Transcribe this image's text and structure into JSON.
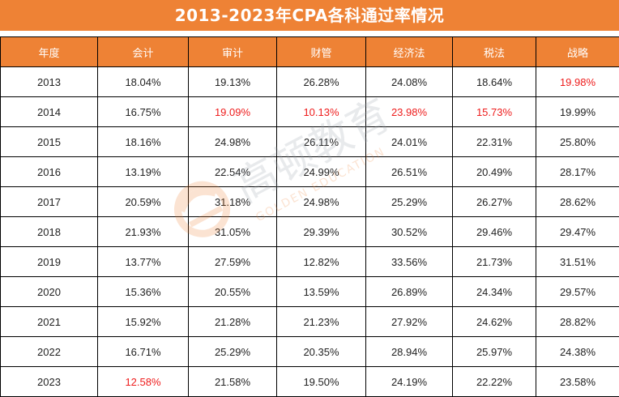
{
  "title": "2013-2023年CPA各科通过率情况",
  "colors": {
    "header_bg": "#ee8235",
    "header_text": "#ffffff",
    "highlight_red": "#ee1c1c",
    "cell_text": "#222222",
    "border": "#000000"
  },
  "watermark": {
    "text": "高顿教育",
    "subtext": "GOLDEN EDUCATION",
    "icon": "golden-education-logo-icon"
  },
  "table": {
    "headers": [
      "年度",
      "会计",
      "审计",
      "财管",
      "经济法",
      "税法",
      "战略"
    ],
    "rows": [
      {
        "cells": [
          "2013",
          "18.04%",
          "19.13%",
          "26.28%",
          "24.08%",
          "18.64%",
          "19.98%"
        ],
        "red": [
          6
        ]
      },
      {
        "cells": [
          "2014",
          "16.75%",
          "19.09%",
          "10.13%",
          "23.98%",
          "15.73%",
          "19.99%"
        ],
        "red": [
          2,
          3,
          4,
          5
        ]
      },
      {
        "cells": [
          "2015",
          "18.16%",
          "24.98%",
          "26.11%",
          "24.01%",
          "22.31%",
          "25.80%"
        ],
        "red": []
      },
      {
        "cells": [
          "2016",
          "13.19%",
          "22.54%",
          "24.99%",
          "26.51%",
          "20.49%",
          "28.17%"
        ],
        "red": []
      },
      {
        "cells": [
          "2017",
          "20.59%",
          "31.18%",
          "24.98%",
          "25.29%",
          "26.27%",
          "28.62%"
        ],
        "red": []
      },
      {
        "cells": [
          "2018",
          "21.93%",
          "31.05%",
          "29.39%",
          "30.52%",
          "29.46%",
          "29.47%"
        ],
        "red": []
      },
      {
        "cells": [
          "2019",
          "13.77%",
          "27.59%",
          "12.82%",
          "33.56%",
          "21.73%",
          "31.51%"
        ],
        "red": []
      },
      {
        "cells": [
          "2020",
          "15.36%",
          "20.55%",
          "13.59%",
          "26.89%",
          "24.34%",
          "29.57%"
        ],
        "red": []
      },
      {
        "cells": [
          "2021",
          "15.92%",
          "21.28%",
          "21.23%",
          "27.92%",
          "24.62%",
          "28.82%"
        ],
        "red": []
      },
      {
        "cells": [
          "2022",
          "16.71%",
          "25.29%",
          "20.35%",
          "28.94%",
          "25.97%",
          "24.38%"
        ],
        "red": []
      },
      {
        "cells": [
          "2023",
          "12.58%",
          "21.58%",
          "19.50%",
          "24.19%",
          "22.22%",
          "23.58%"
        ],
        "red": [
          1
        ]
      }
    ]
  }
}
